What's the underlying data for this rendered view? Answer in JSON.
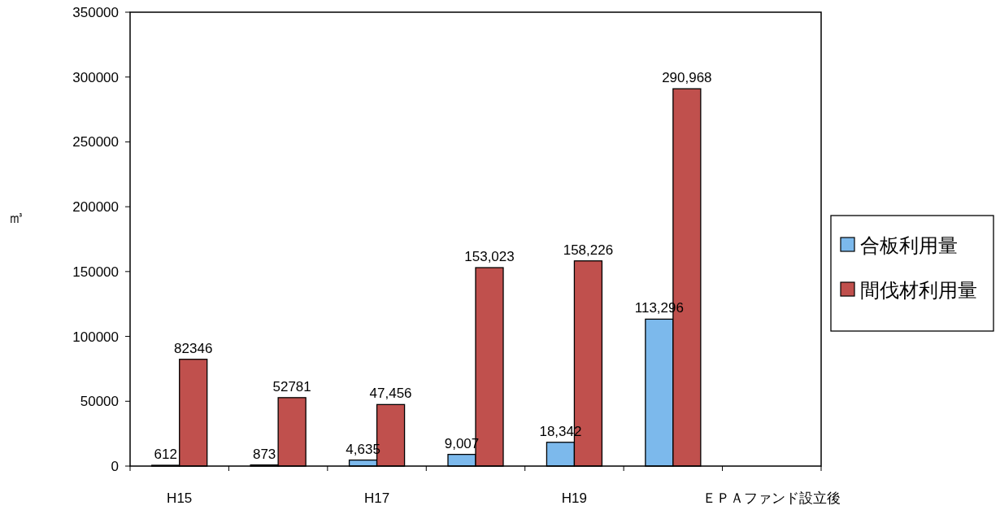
{
  "chart_data": {
    "type": "bar",
    "ylabel": "㎥",
    "categories": [
      "H15",
      null,
      "H17",
      null,
      "H19",
      null,
      "ＥＰＡファンド設立後"
    ],
    "series": [
      {
        "name": "合板利用量",
        "color": "#7cb9ec",
        "values": [
          612,
          873,
          4635,
          9007,
          18342,
          113296,
          null
        ],
        "value_labels": [
          "612",
          "873",
          "4,635",
          "9,007",
          "18,342",
          "113,296",
          null
        ]
      },
      {
        "name": "間伐材利用量",
        "color": "#c0504d",
        "values": [
          82346,
          52781,
          47456,
          153023,
          158226,
          290968,
          null
        ],
        "value_labels": [
          "82346",
          "52781",
          "47,456",
          "153,023",
          "158,226",
          "290,968",
          null
        ]
      }
    ],
    "ylim": [
      0,
      350000
    ],
    "yticks": [
      0,
      50000,
      100000,
      150000,
      200000,
      250000,
      300000,
      350000
    ],
    "grid": false,
    "legend": "right"
  }
}
